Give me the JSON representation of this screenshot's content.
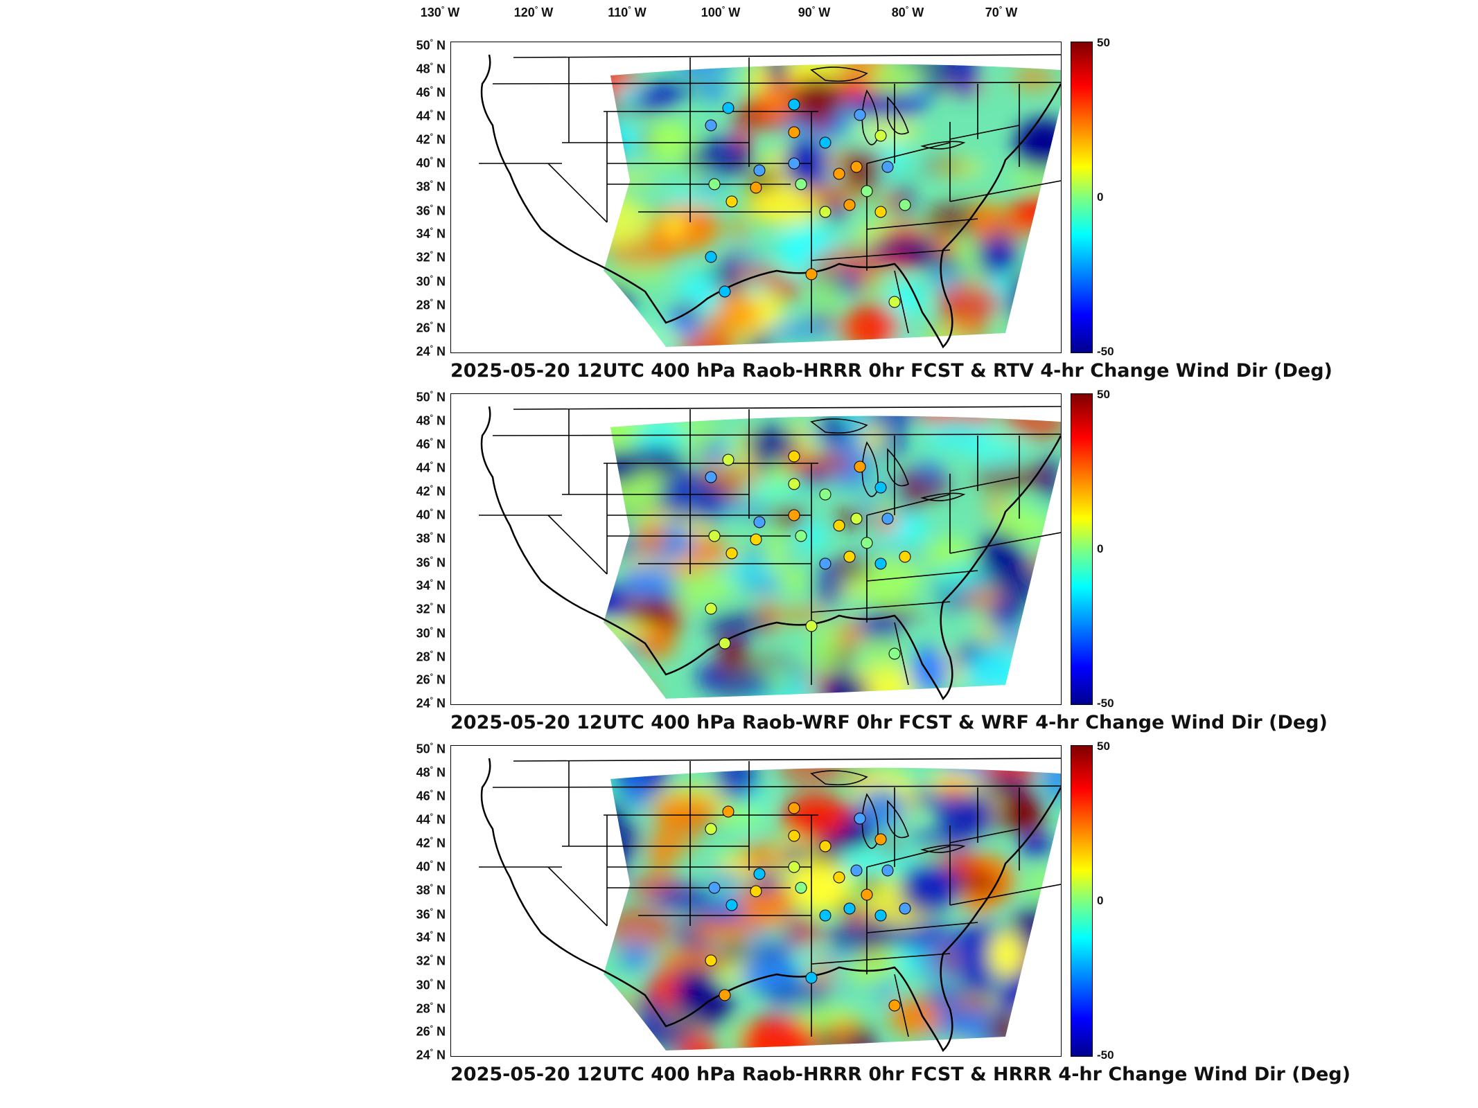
{
  "lon_labels": [
    "130",
    "120",
    "110",
    "100",
    "90",
    "80",
    "70"
  ],
  "lon_suffix": "W",
  "lat_labels": [
    "50",
    "48",
    "46",
    "44",
    "42",
    "40",
    "38",
    "36",
    "34",
    "32",
    "30",
    "28",
    "26",
    "24"
  ],
  "lat_suffix": "N",
  "degree_symbol": "°",
  "colorbar": {
    "max_label": "50",
    "mid_label": "0",
    "min_label": "-50",
    "colors": [
      "#800000",
      "#ff0000",
      "#ff8000",
      "#ffff00",
      "#80ff80",
      "#00ffff",
      "#0080ff",
      "#0000ff",
      "#00008f"
    ]
  },
  "panels": [
    {
      "title": "2025-05-20 12UTC 400 hPa Raob-HRRR 0hr FCST & RTV 4-hr Change Wind Dir (Deg)"
    },
    {
      "title": "2025-05-20 12UTC 400 hPa Raob-WRF 0hr FCST & WRF 4-hr Change Wind Dir (Deg)"
    },
    {
      "title": "2025-05-20 12UTC 400 hPa Raob-HRRR 0hr FCST & HRRR 4-hr Change Wind Dir (Deg)"
    }
  ]
}
